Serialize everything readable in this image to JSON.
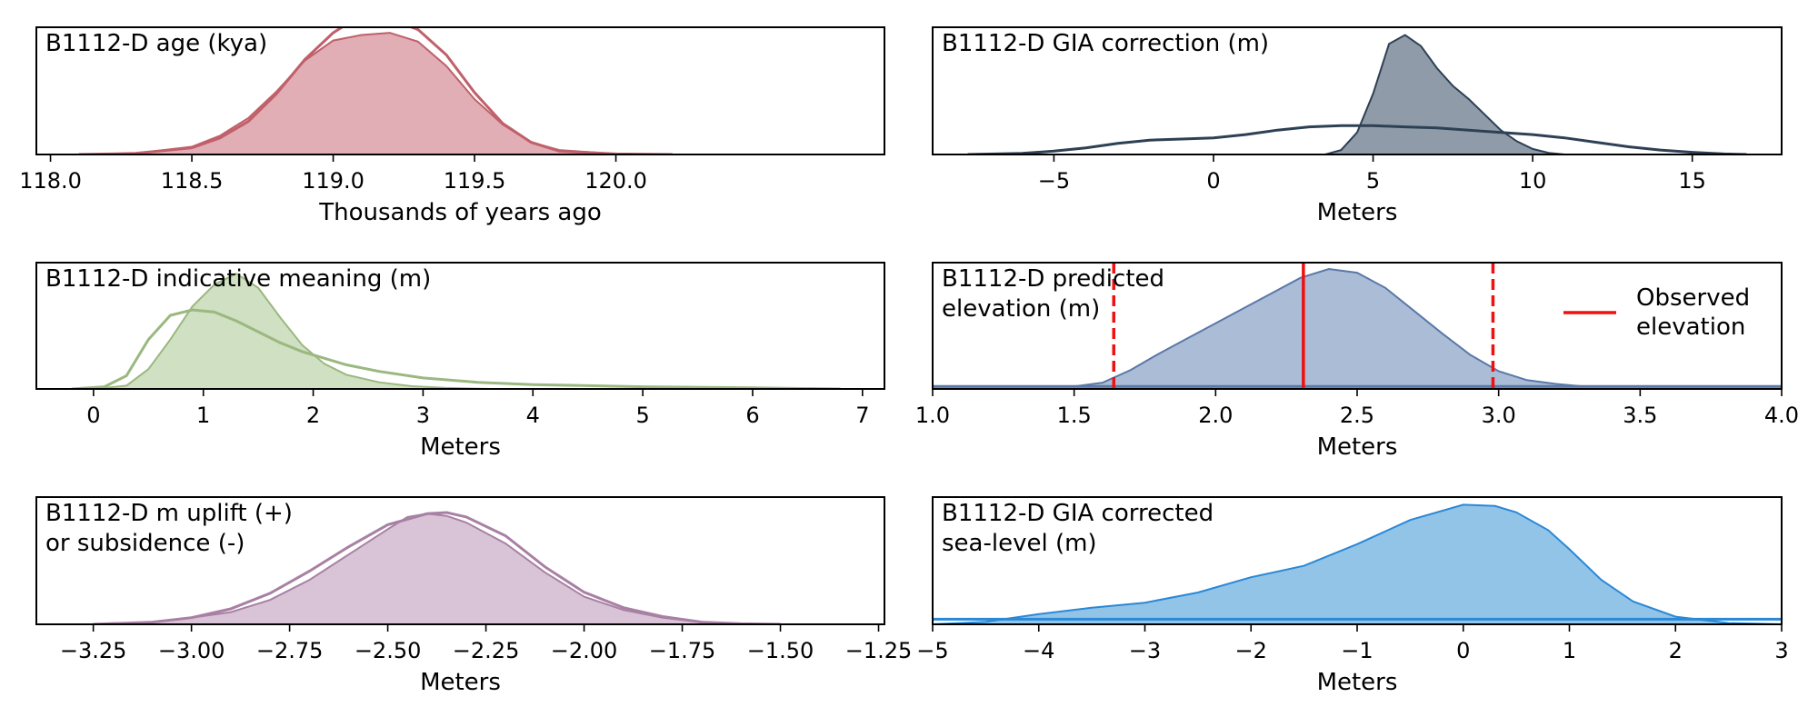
{
  "chart_data": [
    {
      "id": "age",
      "type": "area",
      "title_lines": [
        "B1112-D age (kya)"
      ],
      "xlabel": "Thousands of years ago",
      "xlim": [
        117.95,
        120.95
      ],
      "ymax": 1.15,
      "ticks": [
        118.0,
        118.5,
        119.0,
        119.5,
        120.0
      ],
      "tick_labels": [
        "118.0",
        "118.5",
        "119.0",
        "119.5",
        "120.0"
      ],
      "color": "#c0606a",
      "fill": "#e0aeb4",
      "series": [
        {
          "kind": "fill",
          "x": [
            118.1,
            118.3,
            118.5,
            118.6,
            118.7,
            118.8,
            118.9,
            119.0,
            119.1,
            119.2,
            119.3,
            119.4,
            119.5,
            119.6,
            119.7,
            119.8,
            120.0,
            120.2
          ],
          "y": [
            0.0,
            0.01,
            0.07,
            0.17,
            0.33,
            0.57,
            0.85,
            1.03,
            1.08,
            1.1,
            1.02,
            0.8,
            0.5,
            0.27,
            0.11,
            0.04,
            0.005,
            0.0
          ]
        },
        {
          "kind": "line",
          "x": [
            118.1,
            118.3,
            118.5,
            118.6,
            118.7,
            118.8,
            118.9,
            119.0,
            119.05,
            119.1,
            119.2,
            119.3,
            119.4,
            119.5,
            119.6,
            119.7,
            119.8,
            120.0,
            120.2
          ],
          "y": [
            0.0,
            0.01,
            0.06,
            0.15,
            0.3,
            0.55,
            0.86,
            1.1,
            1.18,
            1.23,
            1.22,
            1.13,
            0.9,
            0.56,
            0.28,
            0.11,
            0.03,
            0.005,
            0.0
          ]
        }
      ]
    },
    {
      "id": "gia",
      "type": "area",
      "title_lines": [
        "B1112-D GIA correction (m)"
      ],
      "xlabel": "Meters",
      "xlim": [
        -8.8,
        17.8
      ],
      "ymax": 1.15,
      "ticks": [
        -5,
        0,
        5,
        10,
        15
      ],
      "tick_labels": [
        "−5",
        "0",
        "5",
        "10",
        "15"
      ],
      "color": "#2e4054",
      "fill": "#8f9ba8",
      "series": [
        {
          "kind": "fill",
          "x": [
            3.5,
            4.0,
            4.5,
            5.0,
            5.5,
            6.0,
            6.5,
            7.0,
            7.5,
            8.0,
            8.5,
            9.0,
            9.5,
            10.0,
            10.5,
            11.0
          ],
          "y": [
            0.0,
            0.04,
            0.2,
            0.55,
            1.0,
            1.08,
            0.98,
            0.78,
            0.62,
            0.5,
            0.36,
            0.22,
            0.12,
            0.05,
            0.015,
            0.0
          ]
        },
        {
          "kind": "line",
          "x": [
            -7.7,
            -6,
            -5,
            -4,
            -3,
            -2,
            -1,
            0,
            1,
            2,
            3,
            4,
            5,
            6,
            7,
            8,
            9,
            10,
            11,
            12,
            13,
            14,
            15,
            16,
            16.7
          ],
          "y": [
            0.0,
            0.01,
            0.03,
            0.06,
            0.1,
            0.13,
            0.14,
            0.15,
            0.18,
            0.22,
            0.25,
            0.26,
            0.26,
            0.25,
            0.24,
            0.22,
            0.2,
            0.18,
            0.15,
            0.11,
            0.07,
            0.04,
            0.02,
            0.005,
            0.0
          ]
        }
      ]
    },
    {
      "id": "indicative",
      "type": "area",
      "title_lines": [
        "B1112-D indicative meaning (m)"
      ],
      "xlabel": "Meters",
      "xlim": [
        -0.52,
        7.2
      ],
      "ymax": 1.15,
      "ticks": [
        0,
        1,
        2,
        3,
        4,
        5,
        6,
        7
      ],
      "tick_labels": [
        "0",
        "1",
        "2",
        "3",
        "4",
        "5",
        "6",
        "7"
      ],
      "color": "#9ab880",
      "fill": "#d0e0c2",
      "series": [
        {
          "kind": "fill",
          "x": [
            -0.2,
            0.0,
            0.3,
            0.5,
            0.7,
            0.9,
            1.1,
            1.3,
            1.5,
            1.7,
            1.9,
            2.1,
            2.3,
            2.6,
            2.9,
            3.2,
            3.6
          ],
          "y": [
            0.0,
            0.0,
            0.03,
            0.18,
            0.45,
            0.75,
            0.95,
            1.05,
            0.92,
            0.65,
            0.4,
            0.23,
            0.13,
            0.06,
            0.025,
            0.01,
            0.0
          ]
        },
        {
          "kind": "line",
          "x": [
            -0.2,
            0.1,
            0.3,
            0.5,
            0.7,
            0.9,
            1.1,
            1.3,
            1.5,
            1.7,
            1.9,
            2.1,
            2.3,
            2.6,
            3.0,
            3.5,
            4.0,
            5.0,
            6.0,
            6.8
          ],
          "y": [
            0.0,
            0.02,
            0.12,
            0.45,
            0.67,
            0.72,
            0.7,
            0.62,
            0.52,
            0.42,
            0.34,
            0.28,
            0.22,
            0.16,
            0.1,
            0.06,
            0.04,
            0.02,
            0.01,
            0.0
          ]
        }
      ]
    },
    {
      "id": "predicted",
      "type": "area",
      "title_lines": [
        "B1112-D predicted",
        "elevation (m)"
      ],
      "xlabel": "Meters",
      "xlim": [
        1.0,
        4.0
      ],
      "ymax": 1.0,
      "ticks": [
        1.0,
        1.5,
        2.0,
        2.5,
        3.0,
        3.5,
        4.0
      ],
      "tick_labels": [
        "1.0",
        "1.5",
        "2.0",
        "2.5",
        "3.0",
        "3.5",
        "4.0"
      ],
      "color": "#5a78a8",
      "fill": "#abbdd6",
      "baseline": 0.02,
      "series": [
        {
          "kind": "fill",
          "x": [
            1.0,
            1.5,
            1.6,
            1.7,
            1.8,
            1.9,
            2.0,
            2.1,
            2.2,
            2.3,
            2.4,
            2.5,
            2.6,
            2.7,
            2.8,
            2.9,
            3.0,
            3.1,
            3.2,
            3.3,
            3.5,
            4.0
          ],
          "y": [
            0.02,
            0.02,
            0.05,
            0.15,
            0.28,
            0.4,
            0.52,
            0.64,
            0.76,
            0.88,
            0.95,
            0.92,
            0.8,
            0.62,
            0.44,
            0.27,
            0.14,
            0.07,
            0.04,
            0.02,
            0.02,
            0.02
          ]
        }
      ],
      "vlines": [
        {
          "x": 2.31,
          "style": "solid",
          "color": "#ee1111"
        },
        {
          "x": 1.64,
          "style": "dashed",
          "color": "#ee1111"
        },
        {
          "x": 2.98,
          "style": "dashed",
          "color": "#ee1111"
        }
      ],
      "legend": {
        "lines": [
          "Observed",
          "elevation"
        ],
        "color": "#ee1111",
        "placement": "right"
      }
    },
    {
      "id": "uplift",
      "type": "area",
      "title_lines": [
        "B1112-D m uplift (+)",
        "or subsidence (-)"
      ],
      "xlabel": "Meters",
      "xlim": [
        -3.395,
        -1.235
      ],
      "ymax": 1.15,
      "ticks": [
        -3.25,
        -3.0,
        -2.75,
        -2.5,
        -2.25,
        -2.0,
        -1.75,
        -1.5,
        -1.25
      ],
      "tick_labels": [
        "−3.25",
        "−3.00",
        "−2.75",
        "−2.50",
        "−2.25",
        "−2.00",
        "−1.75",
        "−1.50",
        "−1.25"
      ],
      "color": "#a880a4",
      "fill": "#d8c4d6",
      "series": [
        {
          "kind": "fill",
          "x": [
            -3.25,
            -3.1,
            -3.0,
            -2.9,
            -2.8,
            -2.7,
            -2.6,
            -2.5,
            -2.45,
            -2.4,
            -2.35,
            -2.3,
            -2.2,
            -2.1,
            -2.0,
            -1.9,
            -1.8,
            -1.7,
            -1.6,
            -1.5
          ],
          "y": [
            0.0,
            0.02,
            0.06,
            0.11,
            0.22,
            0.4,
            0.63,
            0.86,
            0.97,
            1.0,
            0.98,
            0.92,
            0.73,
            0.47,
            0.25,
            0.13,
            0.06,
            0.02,
            0.005,
            0.0
          ]
        },
        {
          "kind": "line",
          "x": [
            -3.25,
            -3.1,
            -3.0,
            -2.9,
            -2.8,
            -2.7,
            -2.6,
            -2.5,
            -2.4,
            -2.35,
            -2.3,
            -2.2,
            -2.1,
            -2.0,
            -1.9,
            -1.8,
            -1.7,
            -1.6,
            -1.5
          ],
          "y": [
            0.0,
            0.02,
            0.06,
            0.14,
            0.28,
            0.48,
            0.7,
            0.9,
            1.0,
            1.01,
            0.97,
            0.8,
            0.52,
            0.29,
            0.15,
            0.07,
            0.02,
            0.005,
            0.0
          ]
        }
      ]
    },
    {
      "id": "gia-corrected",
      "type": "area",
      "title_lines": [
        "B1112-D GIA corrected",
        "sea-level (m)"
      ],
      "xlabel": "Meters",
      "xlim": [
        -5,
        3
      ],
      "ymax": 1.0,
      "ticks": [
        -5,
        -4,
        -3,
        -2,
        -1,
        0,
        1,
        2,
        3
      ],
      "tick_labels": [
        "−5",
        "−4",
        "−3",
        "−2",
        "−1",
        "0",
        "1",
        "2",
        "3"
      ],
      "color": "#2a88d6",
      "fill": "#92c4e8",
      "baseline": 0.04,
      "series": [
        {
          "kind": "fill",
          "x": [
            -5,
            -4.5,
            -4.0,
            -3.5,
            -3.0,
            -2.5,
            -2.0,
            -1.5,
            -1.0,
            -0.5,
            0.0,
            0.3,
            0.5,
            0.8,
            1.0,
            1.3,
            1.6,
            2.0,
            2.5,
            3.0
          ],
          "y": [
            0.0,
            0.02,
            0.08,
            0.13,
            0.17,
            0.25,
            0.37,
            0.46,
            0.63,
            0.82,
            0.94,
            0.93,
            0.88,
            0.74,
            0.59,
            0.35,
            0.18,
            0.06,
            0.01,
            0.0
          ]
        }
      ]
    }
  ]
}
